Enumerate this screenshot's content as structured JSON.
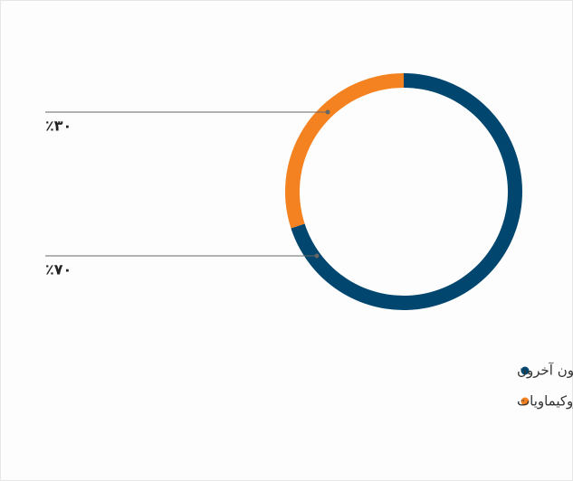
{
  "chart_data": {
    "type": "donut",
    "categories": [
      "مساهمون آخرون",
      "شركة الصحراء للبتروكيماويات"
    ],
    "values": [
      70,
      30
    ],
    "value_labels": [
      "٪٧٠",
      "٪٣٠"
    ],
    "colors": [
      "#00466e",
      "#f58220"
    ],
    "legend": "bottom-right"
  }
}
